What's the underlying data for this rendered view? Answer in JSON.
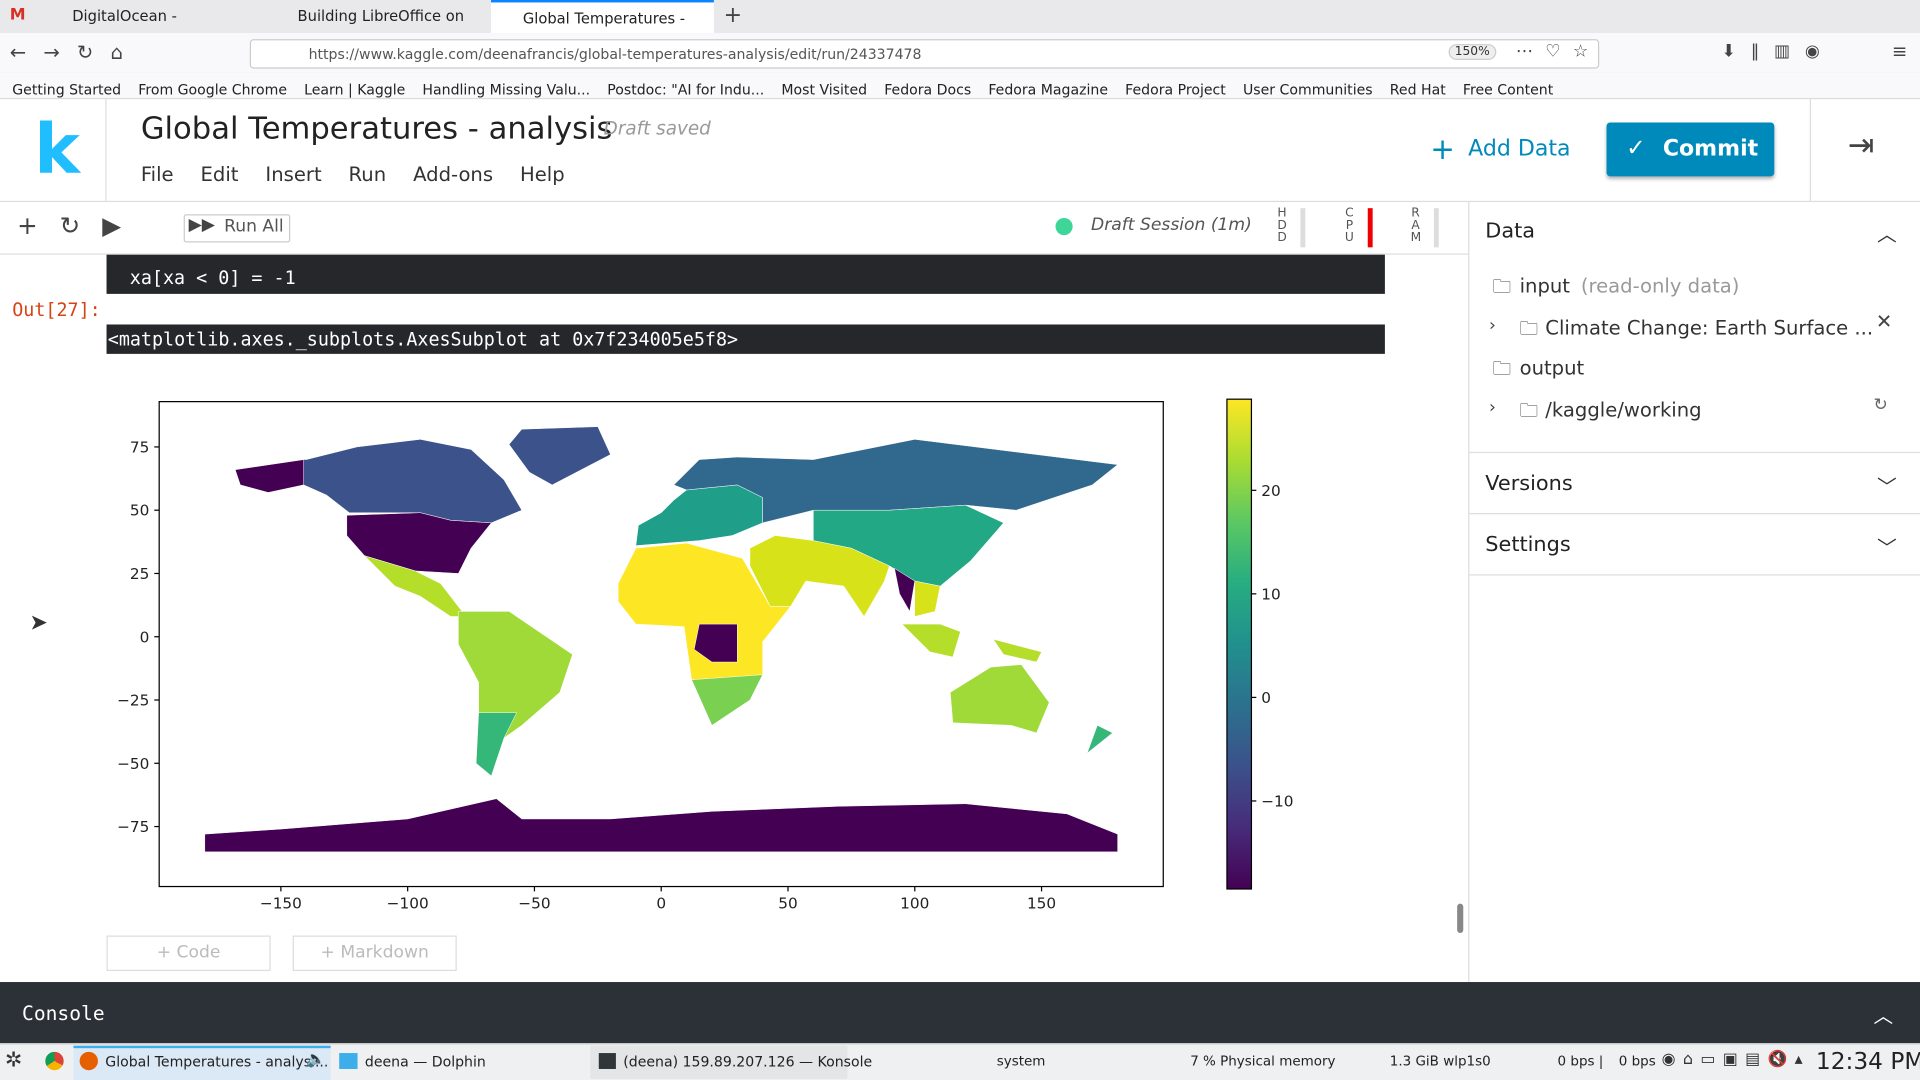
{
  "browser": {
    "tabs": [
      "DigitalOcean - DennisClouc",
      "Building LibreOffice on Lin",
      "Global Temperatures - ana"
    ],
    "url": "https://www.kaggle.com/deenafrancis/global-temperatures-analysis/edit/run/24337478",
    "zoom": "150%",
    "bookmarks": [
      "Getting Started",
      "From Google Chrome",
      "Learn | Kaggle",
      "Handling Missing Valu...",
      "Postdoc: \"AI for Indu...",
      "Most Visited",
      "Fedora Docs",
      "Fedora Magazine",
      "Fedora Project",
      "User Communities",
      "Red Hat",
      "Free Content"
    ]
  },
  "kaggle": {
    "logo": "k",
    "title": "Global Temperatures - analysis",
    "status": "Draft saved",
    "menu": [
      "File",
      "Edit",
      "Insert",
      "Run",
      "Add-ons",
      "Help"
    ],
    "add_data": "Add Data",
    "commit": "Commit"
  },
  "toolbar": {
    "run_all": "Run All",
    "session": "Draft Session (1m)",
    "meters": [
      "HDD",
      "CPU",
      "RAM"
    ]
  },
  "notebook": {
    "code": "xa[xa < 0] = -1",
    "out_prompt": "Out[27]:",
    "output": "<matplotlib.axes._subplots.AxesSubplot at 0x7f234005e5f8>",
    "add_code": "+ Code",
    "add_markdown": "+ Markdown"
  },
  "chart_data": {
    "type": "map",
    "colormap": "viridis",
    "xlim": [
      -198,
      198
    ],
    "ylim": [
      -98.7,
      92.9
    ],
    "clim": [
      -18.5,
      28.8
    ],
    "xticks": [
      {
        "value": -150,
        "label": "−150"
      },
      {
        "value": -100,
        "label": "−100"
      },
      {
        "value": -50,
        "label": "−50"
      },
      0,
      50,
      100,
      150
    ],
    "yticks": [
      75,
      50,
      25,
      0,
      {
        "value": -25,
        "label": "−25"
      },
      {
        "value": -50,
        "label": "−50"
      },
      {
        "value": -75,
        "label": "−75"
      }
    ],
    "cticks": [
      20,
      10,
      0,
      {
        "value": -10,
        "label": "−10"
      }
    ]
  },
  "sidebar": {
    "data": {
      "title": "Data",
      "items": [
        {
          "name": "input",
          "note": "(read-only data)"
        },
        {
          "name": "Climate Change: Earth Surface ..."
        },
        {
          "name": "output"
        },
        {
          "name": "/kaggle/working"
        }
      ]
    },
    "versions": "Versions",
    "settings": "Settings"
  },
  "console": "Console",
  "taskbar": {
    "windows": [
      "Global Temperatures - analysi...",
      "deena — Dolphin",
      "(deena) 159.89.207.126 — Konsole"
    ],
    "system": "system",
    "memory": "7 % Physical memory",
    "network": "1.3 GiB wlp1s0",
    "down": "0 bps |",
    "up": "0 bps",
    "clock": "12:34 PM"
  }
}
